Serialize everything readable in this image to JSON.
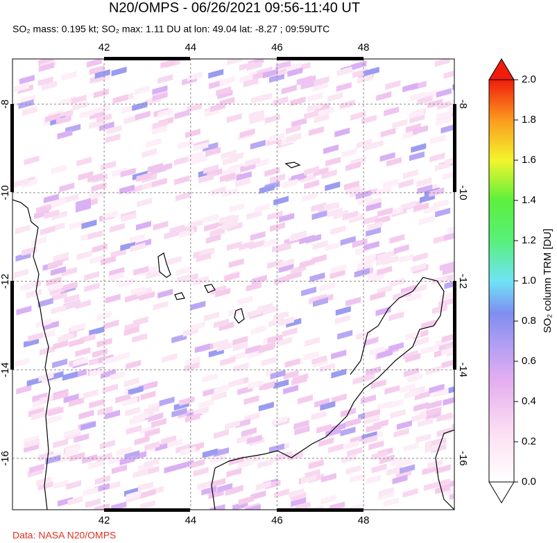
{
  "title": "N20/OMPS - 06/26/2021 09:56-11:40 UT",
  "subtitle": "SO₂ mass: 0.195 kt; SO₂ max: 1.11 DU at lon: 49.04 lat: -8.27 ; 09:59UTC",
  "map": {
    "xlim": [
      39.88,
      50.1
    ],
    "ylim": [
      -17.16,
      -6.98
    ],
    "xticks": [
      42,
      44,
      46,
      48
    ],
    "yticks": [
      -8,
      -10,
      -12,
      -14,
      -16
    ]
  },
  "colorbar": {
    "label": "SO₂ column TRM [DU]",
    "lim": [
      0,
      2
    ],
    "ticks": [
      {
        "value": 0,
        "label": "0.0"
      },
      {
        "value": 0.2,
        "label": "0.2"
      },
      {
        "value": 0.4,
        "label": "0.4"
      },
      {
        "value": 0.6,
        "label": "0.6"
      },
      {
        "value": 0.8,
        "label": "0.8"
      },
      {
        "value": 1,
        "label": "1.0"
      },
      {
        "value": 1.2,
        "label": "1.2"
      },
      {
        "value": 1.4,
        "label": "1.4"
      },
      {
        "value": 1.6,
        "label": "1.6"
      },
      {
        "value": 1.8,
        "label": "1.8"
      },
      {
        "value": 2,
        "label": "2.0"
      }
    ]
  },
  "credit": "Data: NASA N20/OMPS"
}
